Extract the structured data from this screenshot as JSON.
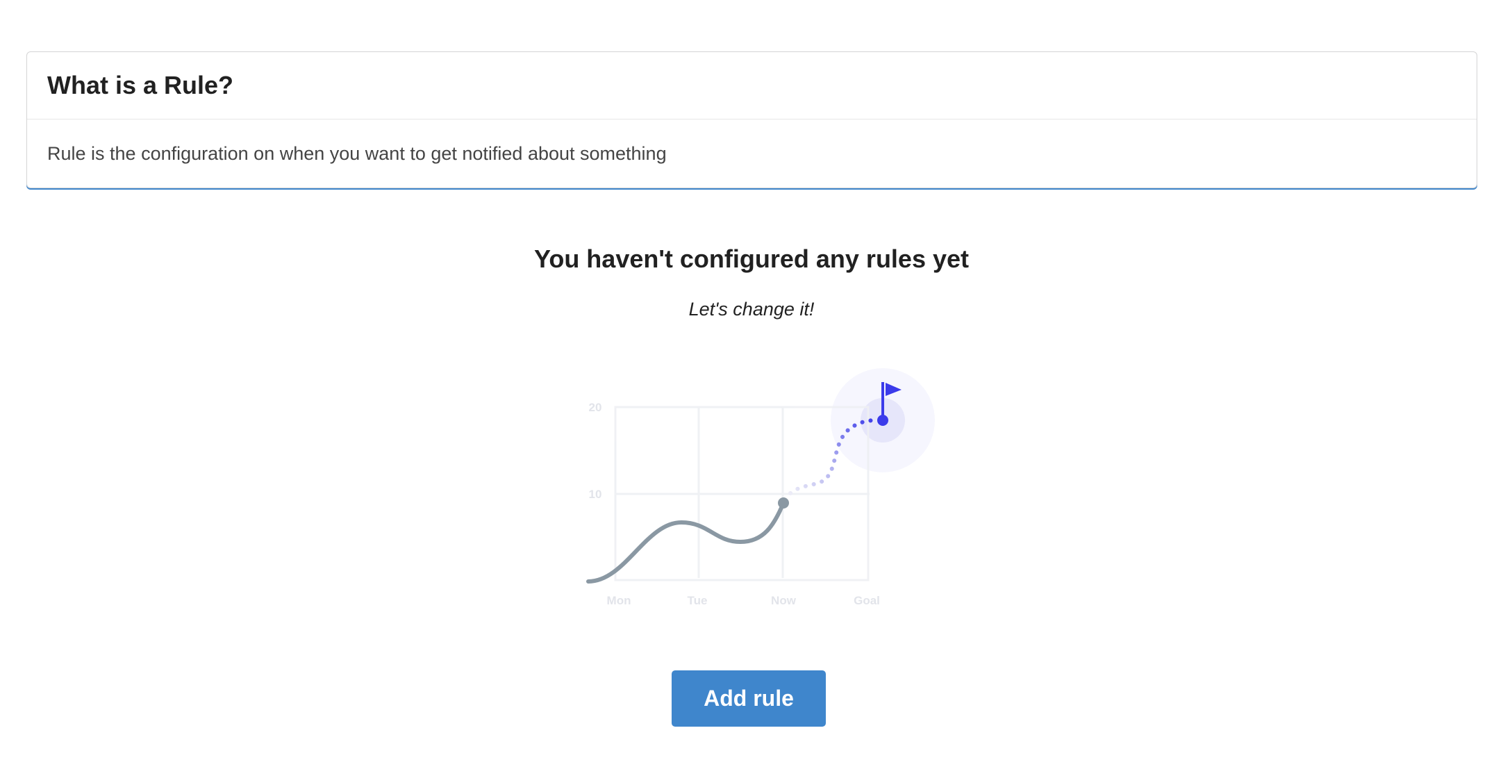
{
  "info_card": {
    "title": "What is a Rule?",
    "body": "Rule is the configuration on when you want to get notified about something"
  },
  "empty_state": {
    "title": "You haven't configured any rules yet",
    "subtitle": "Let's change it!",
    "illustration": {
      "y_labels": [
        "20",
        "10"
      ],
      "x_labels": [
        "Mon",
        "Tue",
        "Now",
        "Goal"
      ],
      "colors": {
        "line": "#8a98a3",
        "goal": "#3b3bea",
        "grid": "#eef0f3"
      }
    },
    "add_button": "Add rule"
  },
  "colors": {
    "accent": "#3f86cc"
  }
}
